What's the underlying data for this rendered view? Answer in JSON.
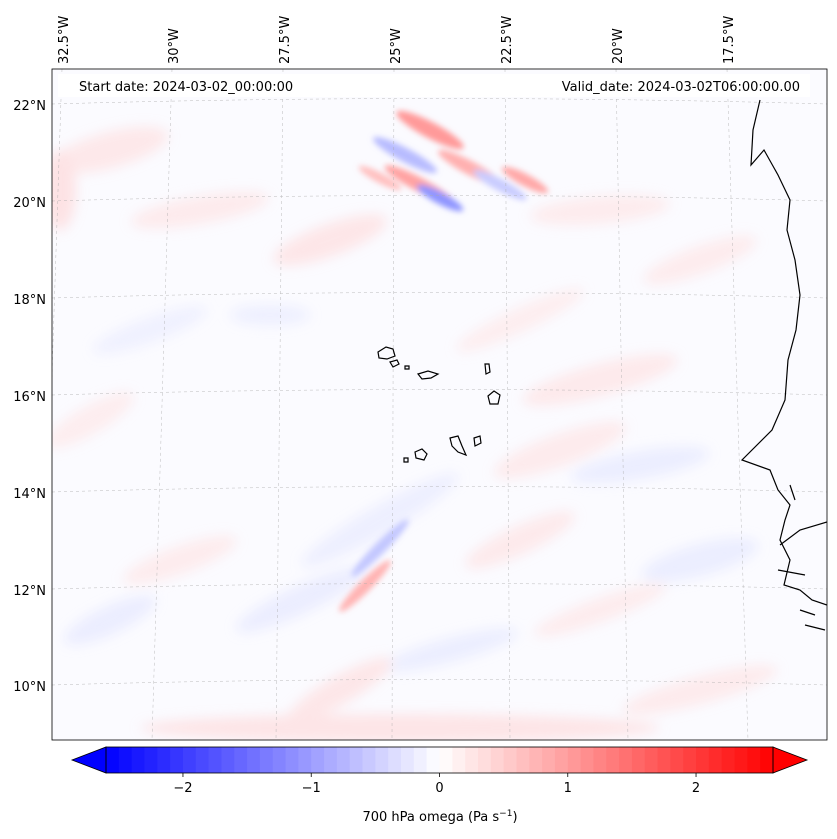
{
  "header": {
    "start_date": "Start date: 2024-03-02_00:00:00",
    "valid_date": "Valid_date: 2024-03-02T06:00:00.00"
  },
  "map": {
    "lon_labels": [
      "32.5°W",
      "30°W",
      "27.5°W",
      "25°W",
      "22.5°W",
      "20°W",
      "17.5°W"
    ],
    "lat_labels": [
      "22°N",
      "20°N",
      "18°N",
      "16°N",
      "14°N",
      "12°N",
      "10°N"
    ],
    "gridlines": true,
    "coastline_color": "#000000",
    "field": "700 hPa omega"
  },
  "colorbar": {
    "label": "700 hPa omega (Pa s",
    "label_sup": "−1",
    "label_close": ")",
    "ticks": [
      "−2",
      "−1",
      "0",
      "1",
      "2"
    ],
    "tick_values": [
      -2,
      -1,
      0,
      1,
      2
    ],
    "range": [
      -2.6,
      2.6
    ],
    "colormap": "bwr",
    "low_color": "#0000ff",
    "mid_color": "#ffffff",
    "high_color": "#ff0000",
    "extend": "both"
  }
}
